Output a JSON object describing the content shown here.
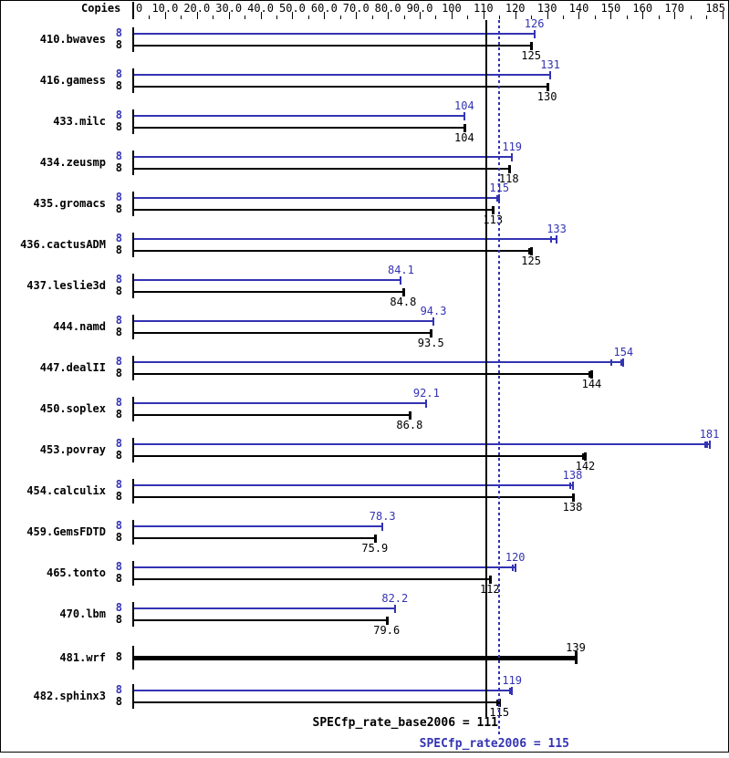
{
  "header": {
    "copies_label": "Copies"
  },
  "colors": {
    "peak_blue": "#3333b4",
    "base_black": "#000000",
    "background": "#ffffff"
  },
  "legend": {
    "base_label": "SPECfp_rate_base2006 = 111",
    "peak_label": "SPECfp_rate2006 = 115"
  },
  "chart_data": {
    "type": "bar",
    "orientation": "horizontal",
    "title": "",
    "xlabel": "",
    "ylabel": "Copies",
    "xlim": [
      0,
      185
    ],
    "grid": false,
    "minor_tick_step": 5,
    "major_tick_step": 10,
    "axis_tick_labels": [
      {
        "text": "0",
        "value": 0
      },
      {
        "text": "10.0",
        "value": 10
      },
      {
        "text": "20.0",
        "value": 20
      },
      {
        "text": "30.0",
        "value": 30
      },
      {
        "text": "40.0",
        "value": 40
      },
      {
        "text": "50.0",
        "value": 50
      },
      {
        "text": "60.0",
        "value": 60
      },
      {
        "text": "70.0",
        "value": 70
      },
      {
        "text": "80.0",
        "value": 80
      },
      {
        "text": "90.0",
        "value": 90
      },
      {
        "text": "100",
        "value": 100
      },
      {
        "text": "110",
        "value": 110
      },
      {
        "text": "120",
        "value": 120
      },
      {
        "text": "130",
        "value": 130
      },
      {
        "text": "140",
        "value": 140
      },
      {
        "text": "150",
        "value": 150
      },
      {
        "text": "160",
        "value": 160
      },
      {
        "text": "170",
        "value": 170
      },
      {
        "text": "185",
        "value": 185
      }
    ],
    "categories": [
      "410.bwaves",
      "416.gamess",
      "433.milc",
      "434.zeusmp",
      "435.gromacs",
      "436.cactusADM",
      "437.leslie3d",
      "444.namd",
      "447.dealII",
      "450.soplex",
      "453.povray",
      "454.calculix",
      "459.GemsFDTD",
      "465.tonto",
      "470.lbm",
      "481.wrf",
      "482.sphinx3"
    ],
    "series": [
      {
        "name": "SPECfp_rate2006 (peak)",
        "color": "#3333b4",
        "copies": [
          "8",
          "8",
          "8",
          "8",
          "8",
          "8",
          "8",
          "8",
          "8",
          "8",
          "8",
          "8",
          "8",
          "8",
          "8",
          null,
          "8"
        ],
        "values": [
          126,
          131,
          104,
          119,
          115,
          133,
          84.1,
          94.3,
          154,
          92.1,
          181,
          138,
          78.3,
          120,
          82.2,
          null,
          119
        ],
        "labels": [
          "126",
          "131",
          "104",
          "119",
          "115",
          "133",
          "84.1",
          "94.3",
          "154",
          "92.1",
          "181",
          "138",
          "78.3",
          "120",
          "82.2",
          null,
          "119"
        ],
        "run_marks": [
          [],
          [],
          [],
          [],
          [
            114.3
          ],
          [
            131.2
          ],
          [],
          [],
          [
            150.2,
            153.2
          ],
          [],
          [
            179.6,
            180.4
          ],
          [
            137.2
          ],
          [],
          [
            119.2
          ],
          [],
          [],
          [
            118.3
          ]
        ]
      },
      {
        "name": "SPECfp_rate_base2006 (base)",
        "color": "#000000",
        "copies": [
          "8",
          "8",
          "8",
          "8",
          "8",
          "8",
          "8",
          "8",
          "8",
          "8",
          "8",
          "8",
          "8",
          "8",
          "8",
          "8",
          "8"
        ],
        "values": [
          125,
          130,
          104,
          118,
          113,
          125,
          84.8,
          93.5,
          144,
          86.8,
          142,
          138,
          75.9,
          112,
          79.6,
          139,
          115
        ],
        "labels": [
          "125",
          "130",
          "104",
          "118",
          "113",
          "125",
          "84.8",
          "93.5",
          "144",
          "86.8",
          "142",
          "138",
          "75.9",
          "112",
          "79.6",
          "139",
          "115"
        ],
        "run_marks": [
          [],
          [],
          [],
          [],
          [],
          [
            124.3
          ],
          [],
          [],
          [
            143.4
          ],
          [],
          [
            141.3
          ],
          [],
          [],
          [],
          [],
          [],
          [
            114.3
          ]
        ]
      }
    ],
    "single_thick_bar_rows": [
      "481.wrf"
    ],
    "reference_lines": [
      {
        "name": "base",
        "label": "SPECfp_rate_base2006 = 111",
        "value": 111,
        "color": "#000000",
        "style": "solid"
      },
      {
        "name": "peak",
        "label": "SPECfp_rate2006 = 115",
        "value": 115,
        "color": "#3333b4",
        "style": "dotted"
      }
    ],
    "legend_position": "bottom"
  }
}
